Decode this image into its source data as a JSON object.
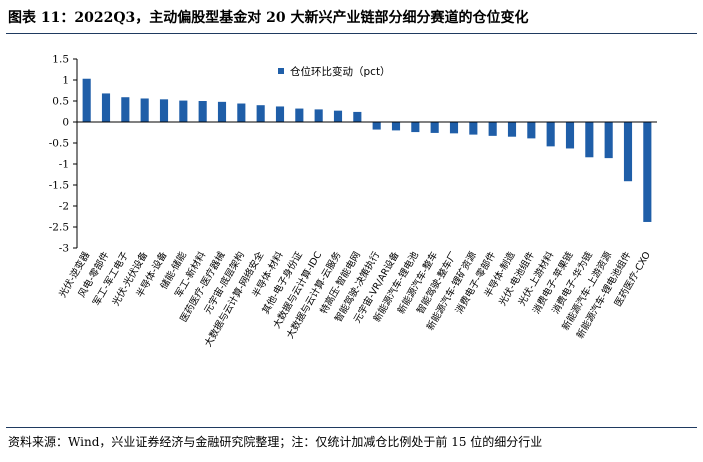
{
  "header": {
    "title": "图表 11：2022Q3，主动偏股型基金对 20 大新兴产业链部分细分赛道的仓位变化"
  },
  "footer": {
    "source": "资料来源：Wind，兴业证券经济与金融研究院整理；注：仅统计加减仓比例处于前 15 位的细分行业"
  },
  "chart_data": {
    "type": "bar",
    "title": "",
    "xlabel": "",
    "ylabel": "",
    "ylim": [
      -3,
      1.5
    ],
    "yticks": [
      1.5,
      1,
      0.5,
      0,
      -0.5,
      -1,
      -1.5,
      -2,
      -2.5,
      -3
    ],
    "grid": false,
    "legend_position": "top-center",
    "bar_color": "#1f5ea8",
    "categories": [
      "光伏-逆变器",
      "风电-零部件",
      "军工-军工电子",
      "光伏-光伏设备",
      "半导体-设备",
      "储能-储能",
      "军工-新材料",
      "医药医疗-医疗器械",
      "元宇宙-底层架构",
      "大数据与云计算-网络安全",
      "半导体-材料",
      "其他-电子身份证",
      "大数据与云计算-IDC",
      "大数据与云计算-云服务",
      "特高压-智能电网",
      "智能驾驶-决策执行",
      "元宇宙-VR/AR设备",
      "新能源汽车-锂电池",
      "新能源汽车-整车",
      "智能驾驶-整车厂",
      "新能源汽车-锂矿资源",
      "消费电子-零部件",
      "半导体-制造",
      "光伏-电池组件",
      "光伏-上游材料",
      "消费电子-苹果链",
      "消费电子-华为链",
      "新能源汽车-上游资源",
      "新能源汽车-锂电池组件",
      "医药医疗-CXO"
    ],
    "series": [
      {
        "name": "仓位环比变动（pct）",
        "values": [
          1.03,
          0.68,
          0.59,
          0.56,
          0.54,
          0.51,
          0.5,
          0.48,
          0.44,
          0.4,
          0.37,
          0.32,
          0.3,
          0.27,
          0.24,
          -0.18,
          -0.2,
          -0.24,
          -0.26,
          -0.27,
          -0.3,
          -0.33,
          -0.35,
          -0.39,
          -0.58,
          -0.63,
          -0.84,
          -0.86,
          -1.41,
          -2.38
        ]
      }
    ]
  }
}
